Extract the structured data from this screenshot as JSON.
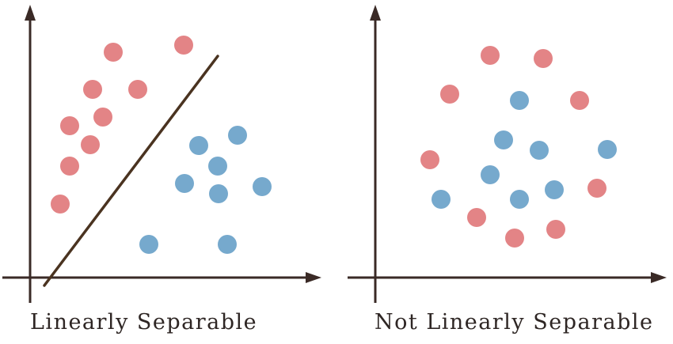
{
  "colors": {
    "red_class": "#e38486",
    "blue_class": "#76a9cd",
    "axis": "#3a2a26",
    "separator": "#4a3320",
    "caption_text": "#2e2624"
  },
  "panels": [
    {
      "id": "left",
      "caption": "Linearly Separable",
      "has_separator": true,
      "red_points": [
        [
          232,
          57
        ],
        [
          143,
          66
        ],
        [
          117,
          113
        ],
        [
          174,
          113
        ],
        [
          130,
          148
        ],
        [
          88,
          159
        ],
        [
          114,
          183
        ],
        [
          88,
          210
        ],
        [
          76,
          258
        ]
      ],
      "blue_points": [
        [
          300,
          171
        ],
        [
          251,
          184
        ],
        [
          275,
          210
        ],
        [
          233,
          232
        ],
        [
          276,
          245
        ],
        [
          331,
          236
        ],
        [
          188,
          309
        ],
        [
          287,
          309
        ]
      ]
    },
    {
      "id": "right",
      "caption": "Not Linearly Separable",
      "has_separator": false,
      "red_points": [
        [
          619,
          70
        ],
        [
          686,
          74
        ],
        [
          568,
          119
        ],
        [
          732,
          127
        ],
        [
          543,
          202
        ],
        [
          754,
          238
        ],
        [
          602,
          275
        ],
        [
          702,
          290
        ],
        [
          650,
          301
        ]
      ],
      "blue_points": [
        [
          656,
          127
        ],
        [
          636,
          177
        ],
        [
          681,
          190
        ],
        [
          767,
          189
        ],
        [
          619,
          221
        ],
        [
          700,
          240
        ],
        [
          557,
          252
        ],
        [
          656,
          252
        ]
      ]
    }
  ]
}
